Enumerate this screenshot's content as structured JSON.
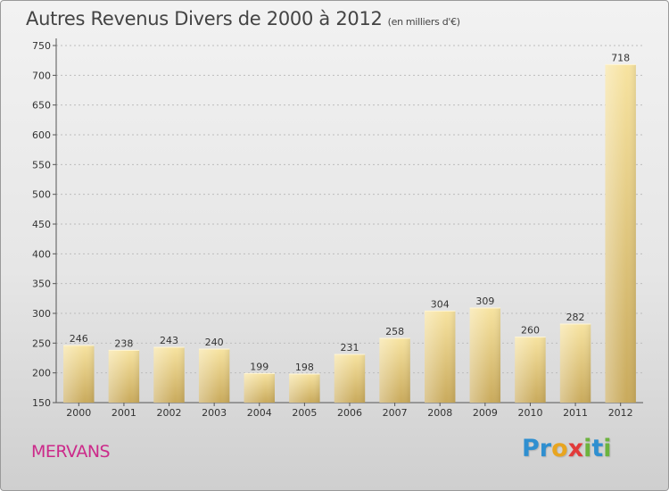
{
  "title": "Autres Revenus Divers de 2000 à 2012",
  "subtitle": "(en milliers d'€)",
  "commune": "MERVANS",
  "logo": {
    "letters": [
      {
        "ch": "P",
        "color": "#2f8fd0"
      },
      {
        "ch": "r",
        "color": "#2f8fd0"
      },
      {
        "ch": "o",
        "color": "#e8a520"
      },
      {
        "ch": "x",
        "color": "#e23b3b"
      },
      {
        "ch": "i",
        "color": "#6cb33e"
      },
      {
        "ch": "t",
        "color": "#2f8fd0"
      },
      {
        "ch": "i",
        "color": "#6cb33e"
      }
    ]
  },
  "chart_data": {
    "type": "bar",
    "categories": [
      "2000",
      "2001",
      "2002",
      "2003",
      "2004",
      "2005",
      "2006",
      "2007",
      "2008",
      "2009",
      "2010",
      "2011",
      "2012"
    ],
    "values": [
      246,
      238,
      243,
      240,
      199,
      198,
      231,
      258,
      304,
      309,
      260,
      282,
      718
    ],
    "ylim": [
      150,
      750
    ],
    "yticks": [
      150,
      200,
      250,
      300,
      350,
      400,
      450,
      500,
      550,
      600,
      650,
      700,
      750
    ],
    "grid": true,
    "bar_color_top": "#f7e3a0",
    "bar_color_bottom": "#c9aa5c"
  }
}
